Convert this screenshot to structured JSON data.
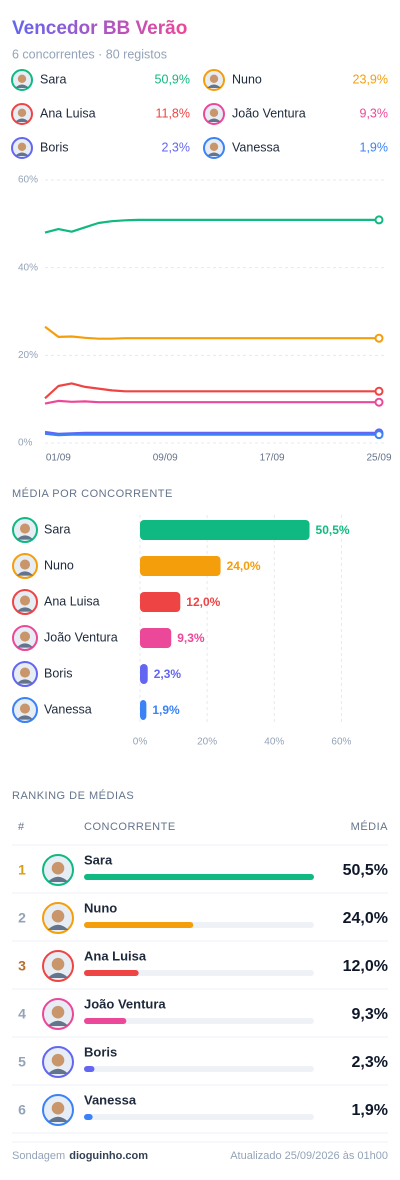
{
  "header": {
    "title": "Vencedor BB Verão",
    "subtitle": "6 concorrentes · 80 registos"
  },
  "chart_data": [
    {
      "type": "line",
      "categories": [
        null,
        "01/09",
        null,
        null,
        null,
        null,
        null,
        null,
        null,
        "09/09",
        null,
        null,
        null,
        null,
        null,
        null,
        null,
        "17/09",
        null,
        null,
        null,
        null,
        null,
        null,
        null,
        "25/09"
      ],
      "ylim": [
        0,
        60
      ],
      "yticks": [
        {
          "value": 0,
          "label": "0%"
        },
        {
          "value": 20,
          "label": "20%"
        },
        {
          "value": 40,
          "label": "40%"
        },
        {
          "value": 60,
          "label": "60%"
        }
      ],
      "grid": true,
      "series": [
        {
          "name": "Sara",
          "color": "#10b981",
          "latest": 50.9,
          "latest_label": "50,9%",
          "values": [
            48,
            48.8,
            48.2,
            49.2,
            50.2,
            50.6,
            50.8,
            50.9,
            50.9,
            50.9,
            50.9,
            50.9,
            50.9,
            50.9,
            50.9,
            50.9,
            50.9,
            50.9,
            50.9,
            50.9,
            50.9,
            50.9,
            50.9,
            50.9,
            50.9,
            50.9
          ]
        },
        {
          "name": "Nuno",
          "color": "#f59e0b",
          "latest": 23.9,
          "latest_label": "23,9%",
          "values": [
            26.5,
            24.2,
            24.3,
            24.0,
            23.8,
            23.8,
            23.9,
            23.9,
            23.9,
            23.9,
            23.9,
            23.9,
            23.9,
            23.9,
            23.9,
            23.9,
            23.9,
            23.9,
            23.9,
            23.9,
            23.9,
            23.9,
            23.9,
            23.9,
            23.9,
            23.9
          ]
        },
        {
          "name": "Ana Luisa",
          "color": "#ef4444",
          "latest": 11.8,
          "latest_label": "11,8%",
          "values": [
            10.2,
            13.0,
            13.6,
            12.8,
            12.4,
            12.0,
            11.8,
            11.8,
            11.8,
            11.8,
            11.8,
            11.8,
            11.8,
            11.8,
            11.8,
            11.8,
            11.8,
            11.8,
            11.8,
            11.8,
            11.8,
            11.8,
            11.8,
            11.8,
            11.8,
            11.8
          ]
        },
        {
          "name": "João Ventura",
          "color": "#ec4899",
          "latest": 9.3,
          "latest_label": "9,3%",
          "values": [
            9.0,
            9.6,
            9.4,
            9.5,
            9.3,
            9.3,
            9.3,
            9.3,
            9.3,
            9.3,
            9.3,
            9.3,
            9.3,
            9.3,
            9.3,
            9.3,
            9.3,
            9.3,
            9.3,
            9.3,
            9.3,
            9.3,
            9.3,
            9.3,
            9.3,
            9.3
          ]
        },
        {
          "name": "Boris",
          "color": "#6366f1",
          "latest": 2.3,
          "latest_label": "2,3%",
          "values": [
            2.5,
            2.1,
            2.2,
            2.3,
            2.3,
            2.3,
            2.3,
            2.3,
            2.3,
            2.3,
            2.3,
            2.3,
            2.3,
            2.3,
            2.3,
            2.3,
            2.3,
            2.3,
            2.3,
            2.3,
            2.3,
            2.3,
            2.3,
            2.3,
            2.3,
            2.3
          ]
        },
        {
          "name": "Vanessa",
          "color": "#3b82f6",
          "latest": 1.9,
          "latest_label": "1,9%",
          "values": [
            2.1,
            1.8,
            1.9,
            1.9,
            1.9,
            1.9,
            1.9,
            1.9,
            1.9,
            1.9,
            1.9,
            1.9,
            1.9,
            1.9,
            1.9,
            1.9,
            1.9,
            1.9,
            1.9,
            1.9,
            1.9,
            1.9,
            1.9,
            1.9,
            1.9,
            1.9
          ]
        }
      ]
    },
    {
      "type": "bar",
      "title": "MÉDIA POR CONCORRENTE",
      "categories": [
        "Sara",
        "Nuno",
        "Ana Luisa",
        "João Ventura",
        "Boris",
        "Vanessa"
      ],
      "values": [
        50.5,
        24.0,
        12.0,
        9.3,
        2.3,
        1.9
      ],
      "value_labels": [
        "50,5%",
        "24,0%",
        "12,0%",
        "9,3%",
        "2,3%",
        "1,9%"
      ],
      "colors": [
        "#10b981",
        "#f59e0b",
        "#ef4444",
        "#ec4899",
        "#6366f1",
        "#3b82f6"
      ],
      "xlim": [
        0,
        70
      ],
      "xticks": [
        {
          "value": 0,
          "label": "0%"
        },
        {
          "value": 20,
          "label": "20%"
        },
        {
          "value": 40,
          "label": "40%"
        },
        {
          "value": 60,
          "label": "60%"
        }
      ],
      "grid": true
    }
  ],
  "ranking": {
    "title": "RANKING DE MÉDIAS",
    "columns": [
      "#",
      "CONCORRENTE",
      "MÉDIA"
    ],
    "rows": [
      {
        "rank": 1,
        "name": "Sara",
        "value": 50.5,
        "value_label": "50,5%",
        "color": "#10b981"
      },
      {
        "rank": 2,
        "name": "Nuno",
        "value": 24.0,
        "value_label": "24,0%",
        "color": "#f59e0b"
      },
      {
        "rank": 3,
        "name": "Ana Luisa",
        "value": 12.0,
        "value_label": "12,0%",
        "color": "#ef4444"
      },
      {
        "rank": 4,
        "name": "João Ventura",
        "value": 9.3,
        "value_label": "9,3%",
        "color": "#ec4899"
      },
      {
        "rank": 5,
        "name": "Boris",
        "value": 2.3,
        "value_label": "2,3%",
        "color": "#6366f1"
      },
      {
        "rank": 6,
        "name": "Vanessa",
        "value": 1.9,
        "value_label": "1,9%",
        "color": "#3b82f6"
      }
    ]
  },
  "footer": {
    "prefix": "Sondagem",
    "source": "dioguinho.com",
    "updated": "Atualizado 25/09/2026 às 01h00"
  }
}
